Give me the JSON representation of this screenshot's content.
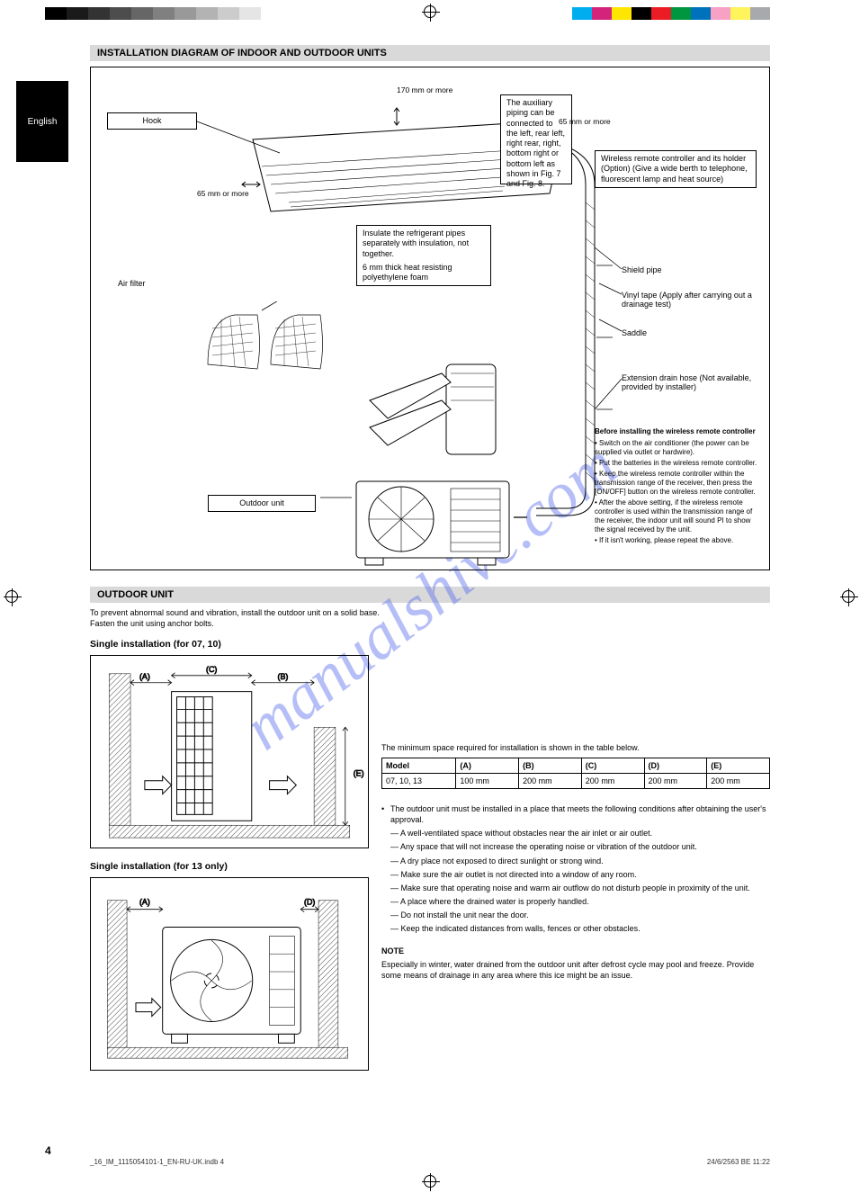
{
  "print_marks": {
    "grays": [
      "#000000",
      "#1a1a1a",
      "#333333",
      "#4d4d4d",
      "#666666",
      "#808080",
      "#999999",
      "#b3b3b3",
      "#cccccc",
      "#e5e5e5"
    ],
    "colors": [
      "#00adef",
      "#d4237a",
      "#ffe600",
      "#000000",
      "#ec1c24",
      "#009640",
      "#0072bc",
      "#f7a1c4",
      "#fff45c",
      "#a7a9ac"
    ]
  },
  "sidebar_lang": "English",
  "page_number": "4",
  "footer_file": "_16_IM_1115054101-1_EN-RU-UK.indb   4",
  "footer_date": "24/6/2563 BE   11:22",
  "section1_title": "INSTALLATION DIAGRAM OF INDOOR AND OUTDOOR UNITS",
  "main": {
    "hook_label": "Hook",
    "one_line": "The auxiliary piping can be connected to the left, rear left, right rear, right, bottom right or bottom left as shown in Fig. 7 and Fig. 8.",
    "guide_label": "Wireless remote controller and its holder (Option)\n(Give a wide berth to telephone, fluorescent lamp and heat source)",
    "air_filter": "Air filter",
    "shield_pipe": "Shield pipe",
    "vinyl_tape": "Vinyl tape  (Apply after carrying out a drainage test)",
    "saddle_label": "Saddle",
    "insulate_text": "Insulate the refrigerant pipes separately with insulation, not together.",
    "insul_spec": "6 mm thick heat resisting polyethylene foam",
    "before_install_label": "Before installing the wireless remote controller",
    "before_install_items": [
      "Switch on the air conditioner (the power can be supplied via outlet or hardwire).",
      "Put the batteries in the wireless remote controller.",
      "Keep the wireless remote controller within the transmission range of the receiver, then press the [ON/OFF] button on the wireless remote controller.",
      "After the above setting, if the wireless remote controller is used within the transmission range of the receiver, the indoor unit will sound PI to show the signal received by the unit.",
      "If it isn't working, please repeat the above."
    ],
    "indoor_clearances": {
      "top": "170 mm or more",
      "left": "65 mm or more",
      "right": "65 mm or more"
    },
    "extension_label": "Extension drain hose\n(Not available, provided by installer)",
    "outdoor_unit": "Outdoor unit"
  },
  "section2_title": "OUTDOOR UNIT",
  "sub_bullet_a": "To prevent abnormal sound and vibration, install the outdoor unit on a solid base.",
  "sub_bullet_b": "Fasten the unit using anchor bolts.",
  "clr_title1": "Single installation (for 07, 10)",
  "clr_title2": "Single installation (for 13 only)",
  "svg_dims": {
    "A": "(A)",
    "B": "(B)",
    "C": "(C)",
    "D": "(D)",
    "E": "(E)"
  },
  "min_space": "The minimum space required for installation is shown in the table below.",
  "table": {
    "head": [
      "Model",
      "(A)",
      "(B)",
      "(C)",
      "(D)",
      "(E)"
    ],
    "row": [
      "07, 10, 13",
      "100 mm",
      "200 mm",
      "200 mm",
      "200 mm",
      "200 mm"
    ]
  },
  "outdoor_bullets": [
    "The outdoor unit must be installed in a place that meets the following conditions after obtaining the user's approval.",
    "— A well-ventilated space without obstacles near the air inlet or air outlet.",
    "— Any space that will not increase the operating noise or vibration of the outdoor unit.",
    "— A dry place not exposed to direct sunlight or strong wind.",
    "— Make sure the air outlet is not directed into a window of any room.",
    "— Make sure that operating noise and warm air outflow do not disturb people in proximity of the unit.",
    "— A place where the drained water is properly handled.",
    "— Do not install the unit near the door.",
    "— Keep the indicated distances from walls, fences or other obstacles."
  ],
  "note_label": "NOTE",
  "note_text": "Especially in winter, water drained from the outdoor unit after defrost cycle may pool and freeze. Provide some means of drainage in any area where this ice might be an issue.",
  "watermark": "manualshive.com"
}
